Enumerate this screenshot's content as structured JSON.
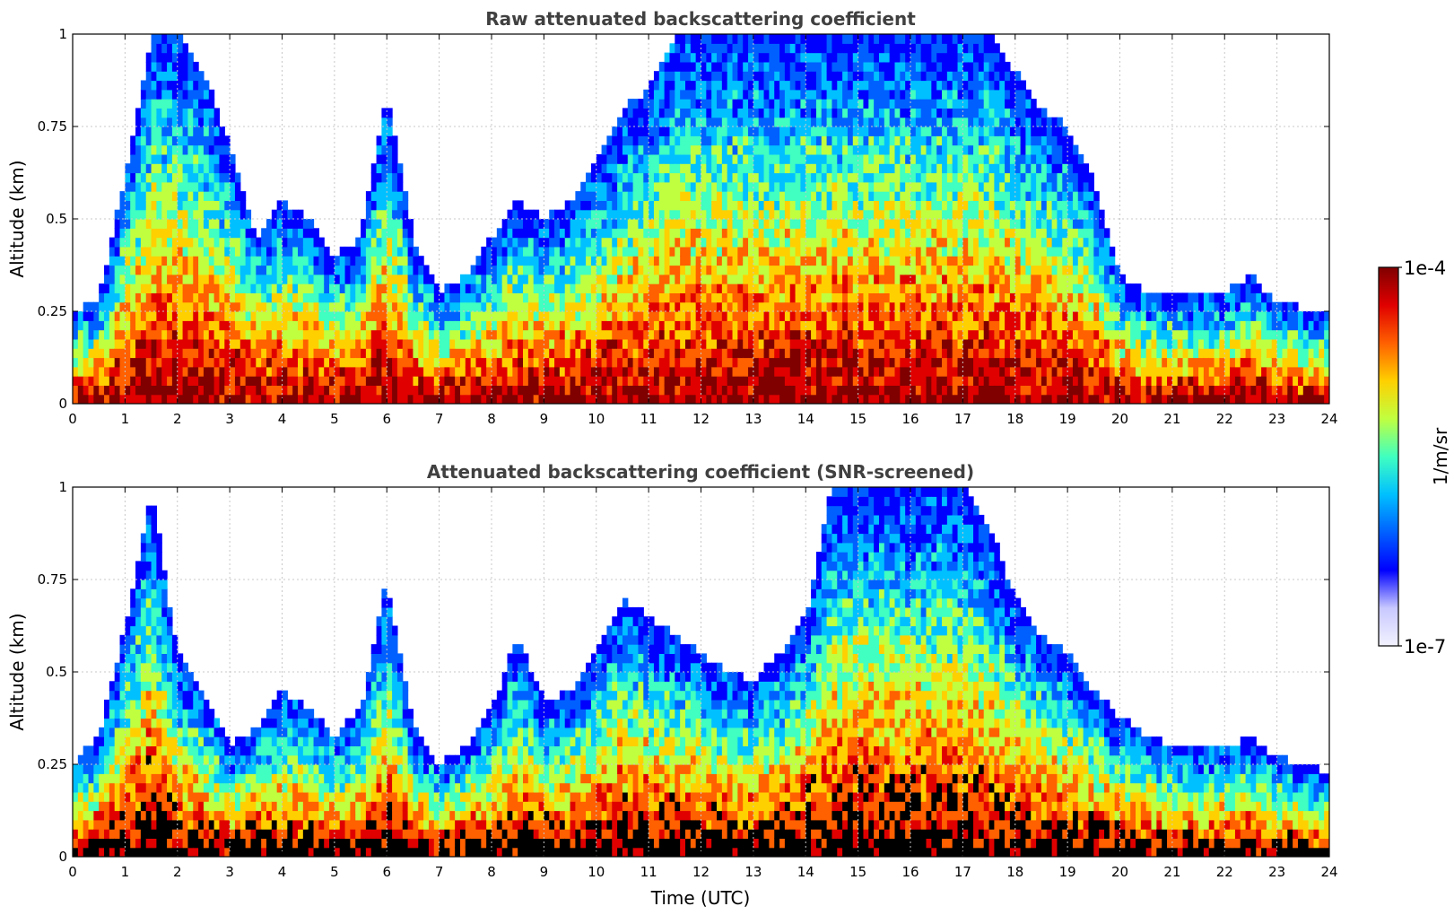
{
  "chart_data": [
    {
      "type": "heatmap",
      "title": "Raw attenuated backscattering coefficient",
      "xlabel": "",
      "ylabel": "Altitude (km)",
      "xlim": [
        0,
        24
      ],
      "ylim": [
        0,
        1
      ],
      "xticks": [
        "0",
        "1",
        "2",
        "3",
        "4",
        "5",
        "6",
        "7",
        "8",
        "9",
        "10",
        "11",
        "12",
        "13",
        "14",
        "15",
        "16",
        "17",
        "18",
        "19",
        "20",
        "21",
        "22",
        "23",
        "24"
      ],
      "yticks": [
        "0",
        "0.25",
        "0.5",
        "0.75",
        "1"
      ],
      "grid": true,
      "screened": false,
      "cloud_top_km": [
        [
          0.0,
          0.25
        ],
        [
          0.5,
          0.28
        ],
        [
          1.0,
          0.62
        ],
        [
          1.5,
          1.0
        ],
        [
          2.0,
          1.0
        ],
        [
          2.5,
          0.9
        ],
        [
          3.0,
          0.7
        ],
        [
          3.5,
          0.45
        ],
        [
          4.0,
          0.55
        ],
        [
          4.5,
          0.5
        ],
        [
          5.0,
          0.4
        ],
        [
          5.5,
          0.45
        ],
        [
          6.0,
          0.85
        ],
        [
          6.5,
          0.45
        ],
        [
          7.0,
          0.3
        ],
        [
          7.5,
          0.35
        ],
        [
          8.0,
          0.45
        ],
        [
          8.5,
          0.55
        ],
        [
          9.0,
          0.5
        ],
        [
          9.5,
          0.55
        ],
        [
          10.0,
          0.65
        ],
        [
          10.5,
          0.8
        ],
        [
          11.0,
          0.85
        ],
        [
          11.5,
          1.0
        ],
        [
          12.0,
          1.0
        ],
        [
          12.5,
          1.0
        ],
        [
          13.0,
          1.0
        ],
        [
          13.5,
          1.0
        ],
        [
          14.0,
          1.0
        ],
        [
          14.5,
          1.0
        ],
        [
          15.0,
          1.0
        ],
        [
          15.5,
          1.0
        ],
        [
          16.0,
          1.0
        ],
        [
          16.5,
          1.0
        ],
        [
          17.0,
          1.0
        ],
        [
          17.5,
          1.0
        ],
        [
          18.0,
          0.9
        ],
        [
          18.5,
          0.8
        ],
        [
          19.0,
          0.75
        ],
        [
          19.5,
          0.6
        ],
        [
          20.0,
          0.35
        ],
        [
          20.5,
          0.3
        ],
        [
          21.0,
          0.3
        ],
        [
          21.5,
          0.3
        ],
        [
          22.0,
          0.3
        ],
        [
          22.5,
          0.35
        ],
        [
          23.0,
          0.27
        ],
        [
          23.5,
          0.26
        ],
        [
          24.0,
          0.25
        ]
      ]
    },
    {
      "type": "heatmap",
      "title": "Attenuated backscattering coefficient (SNR-screened)",
      "xlabel": "Time (UTC)",
      "ylabel": "Altitude (km)",
      "xlim": [
        0,
        24
      ],
      "ylim": [
        0,
        1
      ],
      "xticks": [
        "0",
        "1",
        "2",
        "3",
        "4",
        "5",
        "6",
        "7",
        "8",
        "9",
        "10",
        "11",
        "12",
        "13",
        "14",
        "15",
        "16",
        "17",
        "18",
        "19",
        "20",
        "21",
        "22",
        "23",
        "24"
      ],
      "yticks": [
        "0",
        "0.25",
        "0.5",
        "0.75",
        "1"
      ],
      "grid": true,
      "screened": true,
      "cloud_top_km": [
        [
          0.0,
          0.25
        ],
        [
          0.5,
          0.33
        ],
        [
          1.0,
          0.62
        ],
        [
          1.5,
          1.0
        ],
        [
          2.0,
          0.55
        ],
        [
          2.5,
          0.45
        ],
        [
          3.0,
          0.3
        ],
        [
          3.5,
          0.35
        ],
        [
          4.0,
          0.45
        ],
        [
          4.5,
          0.4
        ],
        [
          5.0,
          0.33
        ],
        [
          5.5,
          0.4
        ],
        [
          6.0,
          0.75
        ],
        [
          6.5,
          0.35
        ],
        [
          7.0,
          0.25
        ],
        [
          7.5,
          0.3
        ],
        [
          8.0,
          0.4
        ],
        [
          8.5,
          0.6
        ],
        [
          9.0,
          0.42
        ],
        [
          9.5,
          0.45
        ],
        [
          10.0,
          0.55
        ],
        [
          10.5,
          0.7
        ],
        [
          11.0,
          0.65
        ],
        [
          11.5,
          0.6
        ],
        [
          12.0,
          0.55
        ],
        [
          12.5,
          0.5
        ],
        [
          13.0,
          0.48
        ],
        [
          13.5,
          0.55
        ],
        [
          14.0,
          0.65
        ],
        [
          14.5,
          1.0
        ],
        [
          15.0,
          1.0
        ],
        [
          15.5,
          1.0
        ],
        [
          16.0,
          1.0
        ],
        [
          16.5,
          1.0
        ],
        [
          17.0,
          1.0
        ],
        [
          17.5,
          0.9
        ],
        [
          18.0,
          0.7
        ],
        [
          18.5,
          0.6
        ],
        [
          19.0,
          0.55
        ],
        [
          19.5,
          0.45
        ],
        [
          20.0,
          0.38
        ],
        [
          20.5,
          0.33
        ],
        [
          21.0,
          0.3
        ],
        [
          21.5,
          0.3
        ],
        [
          22.0,
          0.3
        ],
        [
          22.5,
          0.32
        ],
        [
          23.0,
          0.27
        ],
        [
          23.5,
          0.25
        ],
        [
          24.0,
          0.23
        ]
      ]
    }
  ],
  "colorbar": {
    "label": "1/m/sr",
    "max_label": "1e-4",
    "min_label": "1e-7",
    "scale": "log",
    "colors": [
      "#f2f2ff",
      "#c8c8ff",
      "#0000ff",
      "#0060ff",
      "#00c0ff",
      "#40ffc0",
      "#c0ff40",
      "#ffd000",
      "#ff6000",
      "#e00000",
      "#800000"
    ]
  }
}
